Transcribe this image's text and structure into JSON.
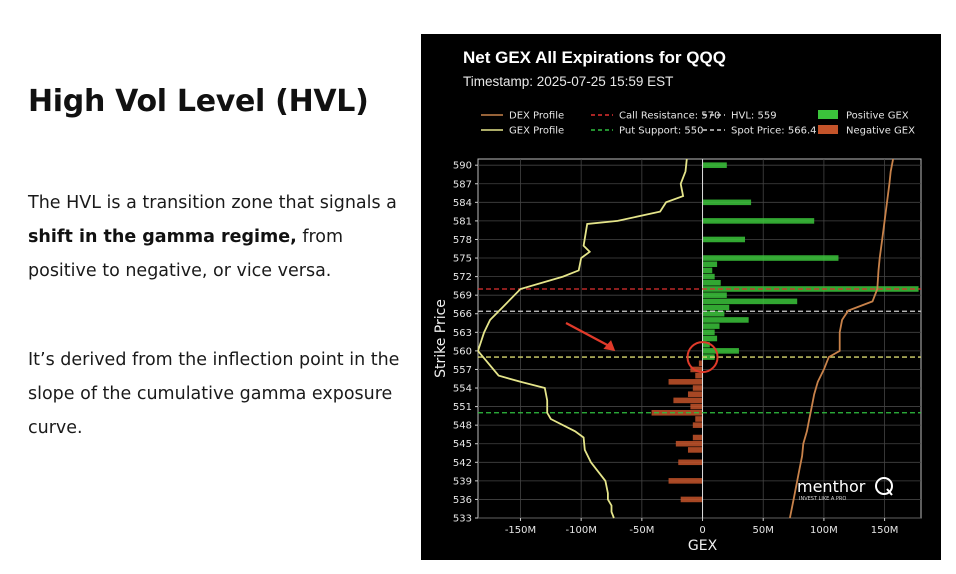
{
  "slide": {
    "heading": "High Vol Level (HVL)",
    "p1_a": "The HVL is a transition zone that signals a ",
    "p1_b": "shift in the gamma regime,",
    "p1_c": " from positive to negative, or vice versa.",
    "p2": "It’s derived from the inflection point in the slope of the cumulative gamma exposure curve."
  },
  "chart_data": {
    "type": "bar",
    "orientation": "horizontal",
    "title": "Net GEX All Expirations for QQQ",
    "subtitle": "Timestamp: 2025-07-25 15:59 EST",
    "xlabel": "GEX",
    "ylabel": "Strike Price",
    "xlim": [
      -185,
      180
    ],
    "ylim": [
      533,
      591
    ],
    "x_ticks": [
      -150,
      -100,
      -50,
      0,
      50,
      100,
      150
    ],
    "x_tick_labels": [
      "-150M",
      "-100M",
      "-50M",
      "0",
      "50M",
      "100M",
      "150M"
    ],
    "y_ticks": [
      533,
      536,
      539,
      542,
      545,
      548,
      551,
      554,
      557,
      560,
      563,
      566,
      569,
      572,
      575,
      578,
      581,
      584,
      587,
      590
    ],
    "grid": true,
    "legend_position": "top",
    "legend": [
      {
        "label": "DEX Profile",
        "style": "line",
        "color": "#c8824a"
      },
      {
        "label": "GEX Profile",
        "style": "line",
        "color": "#e5e58a"
      },
      {
        "label": "Call Resistance: 570",
        "style": "dashed",
        "color": "#e03030"
      },
      {
        "label": "Put Support: 550",
        "style": "dashed",
        "color": "#2fbf3f"
      },
      {
        "label": "HVL: 559",
        "style": "dashed",
        "color": "#cfcfcf"
      },
      {
        "label": "Spot Price: 566.4",
        "style": "dashed",
        "color": "#cfcfcf"
      },
      {
        "label": "Positive GEX",
        "style": "box",
        "color": "#3bc43b"
      },
      {
        "label": "Negative GEX",
        "style": "box",
        "color": "#c4542a"
      }
    ],
    "levels": [
      {
        "name": "Call Resistance",
        "value": 570,
        "color": "#e03030"
      },
      {
        "name": "Put Support",
        "value": 550,
        "color": "#2fbf3f"
      },
      {
        "name": "HVL",
        "value": 559,
        "color": "#d8d870"
      },
      {
        "name": "Spot Price",
        "value": 566.4,
        "color": "#cfcfcf"
      }
    ],
    "positive_bars": [
      {
        "strike": 590,
        "value": 20
      },
      {
        "strike": 584,
        "value": 40
      },
      {
        "strike": 581,
        "value": 92
      },
      {
        "strike": 578,
        "value": 35
      },
      {
        "strike": 575,
        "value": 112
      },
      {
        "strike": 574,
        "value": 12
      },
      {
        "strike": 573,
        "value": 8
      },
      {
        "strike": 572,
        "value": 10
      },
      {
        "strike": 571,
        "value": 15
      },
      {
        "strike": 570,
        "value": 178
      },
      {
        "strike": 569,
        "value": 20
      },
      {
        "strike": 568,
        "value": 78
      },
      {
        "strike": 567,
        "value": 22
      },
      {
        "strike": 566,
        "value": 18
      },
      {
        "strike": 565,
        "value": 38
      },
      {
        "strike": 564,
        "value": 14
      },
      {
        "strike": 563,
        "value": 10
      },
      {
        "strike": 562,
        "value": 12
      },
      {
        "strike": 561,
        "value": 6
      },
      {
        "strike": 560,
        "value": 30
      },
      {
        "strike": 559,
        "value": 10
      }
    ],
    "negative_bars": [
      {
        "strike": 558,
        "value": -3
      },
      {
        "strike": 557,
        "value": -10
      },
      {
        "strike": 556,
        "value": -6
      },
      {
        "strike": 555,
        "value": -28
      },
      {
        "strike": 554,
        "value": -8
      },
      {
        "strike": 553,
        "value": -12
      },
      {
        "strike": 552,
        "value": -24
      },
      {
        "strike": 551,
        "value": -10
      },
      {
        "strike": 550,
        "value": -42
      },
      {
        "strike": 549,
        "value": -6
      },
      {
        "strike": 548,
        "value": -8
      },
      {
        "strike": 546,
        "value": -8
      },
      {
        "strike": 545,
        "value": -22
      },
      {
        "strike": 544,
        "value": -12
      },
      {
        "strike": 542,
        "value": -20
      },
      {
        "strike": 539,
        "value": -28
      },
      {
        "strike": 536,
        "value": -18
      }
    ],
    "gex_profile": {
      "x": [
        -13,
        -14,
        -18,
        -16,
        -30,
        -35,
        -70,
        -95,
        -98,
        -93,
        -100,
        -102,
        -115,
        -150,
        -165,
        -175,
        -180,
        -185,
        -168,
        -150,
        -130,
        -128,
        -128,
        -125,
        -105,
        -98,
        -97,
        -92,
        -80,
        -78,
        -78,
        -75,
        -75,
        -73
      ],
      "y": [
        591,
        589,
        587,
        585,
        584,
        582.5,
        581,
        580.5,
        577,
        576,
        575,
        573,
        572,
        570,
        567,
        565,
        563,
        560,
        556,
        555,
        554,
        552,
        550,
        549,
        547,
        546,
        544,
        542,
        539,
        537,
        536,
        535,
        534,
        533
      ]
    },
    "dex_profile": {
      "x": [
        157,
        155,
        154,
        152,
        150,
        148,
        146,
        145,
        144,
        140,
        120,
        115,
        113,
        113,
        104,
        100,
        95,
        92,
        90,
        88,
        86,
        83,
        82,
        80,
        78,
        75,
        72
      ],
      "y": [
        591,
        589,
        587,
        584,
        581,
        578,
        575,
        573,
        570,
        568,
        566.5,
        565,
        563,
        560,
        559,
        557,
        555,
        553,
        551,
        549,
        547,
        545,
        543,
        541,
        539,
        536,
        533
      ]
    },
    "watermark": "menthor",
    "watermark_tagline": "INVEST LIKE A PRO"
  },
  "colors": {
    "positive": "#3bc43b",
    "negative": "#c4542a",
    "gex_line": "#e5e58a",
    "dex_line": "#c8824a",
    "annotation": "#e03a2a"
  },
  "annotation": {
    "description_icon": "red-arrow-and-circle",
    "circle_at": {
      "x": 0,
      "y": 559
    }
  }
}
